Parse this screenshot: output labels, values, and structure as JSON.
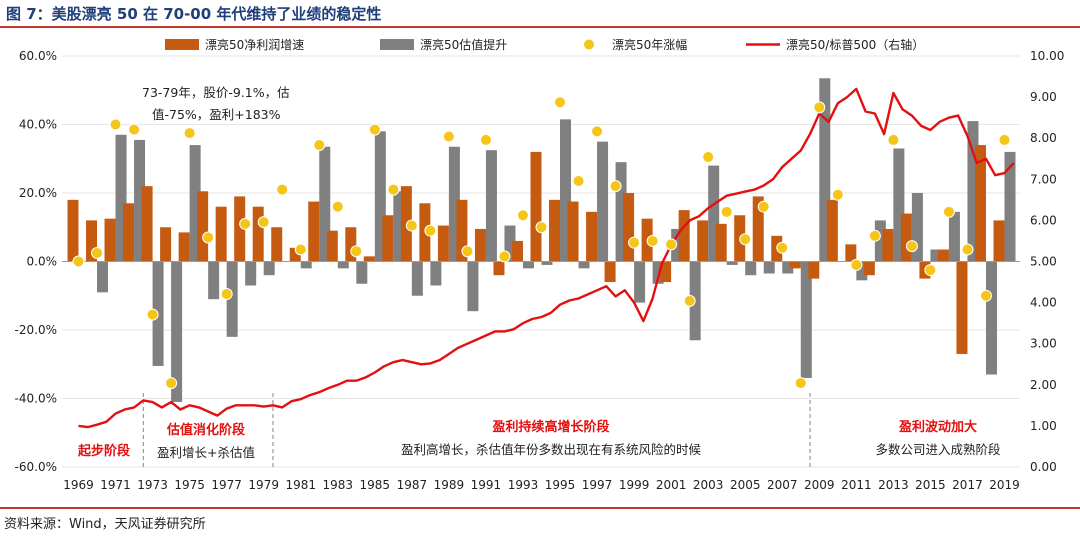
{
  "figure_title": "图 7：美股漂亮 50 在 70-00 年代维持了业绩的稳定性",
  "source": "资料来源：Wind，天风证券研究所",
  "colors": {
    "title": "#1f3f7a",
    "rule": "#c0392b",
    "profit": "#c55a11",
    "valuation": "#808080",
    "return": "#f5c518",
    "index": "#e31010",
    "annotation_red": "#e31010"
  },
  "chart_data": {
    "type": "bar",
    "title": "",
    "years": [
      1969,
      1970,
      1971,
      1972,
      1973,
      1974,
      1975,
      1976,
      1977,
      1978,
      1979,
      1980,
      1981,
      1982,
      1983,
      1984,
      1985,
      1986,
      1987,
      1988,
      1989,
      1990,
      1991,
      1992,
      1993,
      1994,
      1995,
      1996,
      1997,
      1998,
      1999,
      2000,
      2001,
      2002,
      2003,
      2004,
      2005,
      2006,
      2007,
      2008,
      2009,
      2010,
      2011,
      2012,
      2013,
      2014,
      2015,
      2016,
      2017,
      2018,
      2019
    ],
    "x_tick_labels": [
      "1969",
      "1971",
      "1973",
      "1975",
      "1977",
      "1979",
      "1981",
      "1983",
      "1985",
      "1987",
      "1989",
      "1991",
      "1993",
      "1995",
      "1997",
      "1999",
      "2001",
      "2003",
      "2005",
      "2007",
      "2009",
      "2011",
      "2013",
      "2015",
      "2017",
      "2019"
    ],
    "y_left": {
      "min": -60,
      "max": 60,
      "step": 20,
      "tick_labels": [
        "60.0%",
        "40.0%",
        "20.0%",
        "0.0%",
        "-20.0%",
        "-40.0%",
        "-60.0%"
      ]
    },
    "y_right": {
      "min": 0,
      "max": 10,
      "step": 1,
      "tick_labels": [
        "10.00",
        "9.00",
        "8.00",
        "7.00",
        "6.00",
        "5.00",
        "4.00",
        "3.00",
        "2.00",
        "1.00",
        "0.00"
      ]
    },
    "legend": {
      "position": "top",
      "items": [
        "漂亮50净利润增速",
        "漂亮50估值提升",
        "漂亮50年涨幅",
        "漂亮50/标普500（右轴）"
      ]
    },
    "series": [
      {
        "name": "漂亮50净利润增速",
        "type": "bar",
        "axis": "left",
        "values": [
          18,
          12,
          12.5,
          17,
          22,
          10,
          8.5,
          20.5,
          16,
          19,
          16,
          10,
          4,
          17.5,
          9,
          10,
          1.5,
          13.5,
          22,
          17,
          10.5,
          18,
          9.5,
          -4,
          6,
          32,
          18,
          17.5,
          14.5,
          -6,
          20,
          12.5,
          -6,
          15,
          12,
          11,
          13.5,
          19,
          7.5,
          -2,
          -5,
          18,
          5,
          -4,
          9.5,
          14,
          -5,
          3.5,
          -27,
          34,
          12
        ]
      },
      {
        "name": "漂亮50估值提升",
        "type": "bar",
        "axis": "left",
        "values": [
          0,
          -9,
          37,
          35.5,
          -30.5,
          -41,
          34,
          -11,
          -22,
          -7,
          -4,
          0,
          -2,
          33.5,
          -2,
          -6.5,
          38,
          20.5,
          -10,
          -7,
          33.5,
          -14.5,
          32.5,
          10.5,
          -2,
          -1,
          41.5,
          -2,
          35,
          29,
          -12,
          -6.5,
          9.5,
          -23,
          28,
          -1,
          -4,
          -3.5,
          -3.5,
          -34,
          53.5,
          0,
          -5.5,
          12,
          33,
          20,
          3.5,
          14.5,
          41,
          -33,
          32
        ]
      },
      {
        "name": "漂亮50年涨幅",
        "type": "scatter",
        "axis": "left",
        "values": [
          0,
          2.5,
          40,
          38.5,
          -15.5,
          -35.5,
          37.5,
          7,
          -9.5,
          11,
          11.5,
          21,
          3.5,
          34,
          16,
          3,
          38.5,
          21,
          10.5,
          9,
          36.5,
          3,
          35.5,
          1.5,
          13.5,
          10,
          46.5,
          23.5,
          38,
          22,
          5.5,
          6,
          5,
          -11.5,
          30.5,
          14.5,
          6.5,
          16,
          4,
          -35.5,
          45,
          19.5,
          -1,
          7.5,
          35.5,
          4.5,
          -2.5,
          14.5,
          3.5,
          -10,
          35.5
        ]
      },
      {
        "name": "漂亮50/标普500（右轴）",
        "type": "line",
        "axis": "right",
        "points": [
          [
            1969.0,
            1.0
          ],
          [
            1969.5,
            0.97
          ],
          [
            1970.0,
            1.03
          ],
          [
            1970.5,
            1.1
          ],
          [
            1971.0,
            1.3
          ],
          [
            1971.5,
            1.4
          ],
          [
            1972.0,
            1.45
          ],
          [
            1972.5,
            1.62
          ],
          [
            1973.0,
            1.58
          ],
          [
            1973.5,
            1.45
          ],
          [
            1974.0,
            1.58
          ],
          [
            1974.5,
            1.4
          ],
          [
            1975.0,
            1.5
          ],
          [
            1975.5,
            1.45
          ],
          [
            1976.0,
            1.35
          ],
          [
            1976.5,
            1.25
          ],
          [
            1977.0,
            1.42
          ],
          [
            1977.5,
            1.5
          ],
          [
            1978.0,
            1.5
          ],
          [
            1978.5,
            1.5
          ],
          [
            1979.0,
            1.47
          ],
          [
            1979.5,
            1.5
          ],
          [
            1980.0,
            1.45
          ],
          [
            1980.5,
            1.6
          ],
          [
            1981.0,
            1.65
          ],
          [
            1981.5,
            1.75
          ],
          [
            1982.0,
            1.82
          ],
          [
            1982.5,
            1.92
          ],
          [
            1983.0,
            2.0
          ],
          [
            1983.5,
            2.1
          ],
          [
            1984.0,
            2.1
          ],
          [
            1984.5,
            2.18
          ],
          [
            1985.0,
            2.3
          ],
          [
            1985.5,
            2.45
          ],
          [
            1986.0,
            2.55
          ],
          [
            1986.5,
            2.6
          ],
          [
            1987.0,
            2.55
          ],
          [
            1987.5,
            2.5
          ],
          [
            1988.0,
            2.52
          ],
          [
            1988.5,
            2.6
          ],
          [
            1989.0,
            2.75
          ],
          [
            1989.5,
            2.9
          ],
          [
            1990.0,
            3.0
          ],
          [
            1990.5,
            3.1
          ],
          [
            1991.0,
            3.2
          ],
          [
            1991.5,
            3.3
          ],
          [
            1992.0,
            3.3
          ],
          [
            1992.5,
            3.35
          ],
          [
            1993.0,
            3.5
          ],
          [
            1993.5,
            3.6
          ],
          [
            1994.0,
            3.65
          ],
          [
            1994.5,
            3.75
          ],
          [
            1995.0,
            3.95
          ],
          [
            1995.5,
            4.05
          ],
          [
            1996.0,
            4.1
          ],
          [
            1996.5,
            4.2
          ],
          [
            1997.0,
            4.3
          ],
          [
            1997.5,
            4.4
          ],
          [
            1998.0,
            4.15
          ],
          [
            1998.5,
            4.3
          ],
          [
            1999.0,
            4.0
          ],
          [
            1999.5,
            3.55
          ],
          [
            2000.0,
            4.1
          ],
          [
            2000.5,
            4.95
          ],
          [
            2001.0,
            5.4
          ],
          [
            2001.5,
            5.75
          ],
          [
            2002.0,
            6.0
          ],
          [
            2002.5,
            6.1
          ],
          [
            2003.0,
            6.3
          ],
          [
            2003.5,
            6.45
          ],
          [
            2004.0,
            6.6
          ],
          [
            2004.5,
            6.65
          ],
          [
            2005.0,
            6.7
          ],
          [
            2005.5,
            6.75
          ],
          [
            2006.0,
            6.85
          ],
          [
            2006.5,
            7.0
          ],
          [
            2007.0,
            7.3
          ],
          [
            2007.5,
            7.5
          ],
          [
            2008.0,
            7.7
          ],
          [
            2008.5,
            8.1
          ],
          [
            2009.0,
            8.6
          ],
          [
            2009.5,
            8.4
          ],
          [
            2010.0,
            8.85
          ],
          [
            2010.5,
            9.0
          ],
          [
            2011.0,
            9.2
          ],
          [
            2011.5,
            8.65
          ],
          [
            2012.0,
            8.6
          ],
          [
            2012.5,
            8.1
          ],
          [
            2013.0,
            9.1
          ],
          [
            2013.5,
            8.7
          ],
          [
            2014.0,
            8.55
          ],
          [
            2014.5,
            8.3
          ],
          [
            2015.0,
            8.2
          ],
          [
            2015.5,
            8.4
          ],
          [
            2016.0,
            8.5
          ],
          [
            2016.5,
            8.55
          ],
          [
            2017.0,
            8.05
          ],
          [
            2017.5,
            7.4
          ],
          [
            2018.0,
            7.5
          ],
          [
            2018.5,
            7.1
          ],
          [
            2019.0,
            7.15
          ],
          [
            2019.5,
            7.4
          ]
        ]
      }
    ],
    "annotations": {
      "callout": "73-79年，股价-9.1%，估值-75%，盈利+183%",
      "phases": [
        {
          "title": "起步阶段",
          "subtitle": ""
        },
        {
          "title": "估值消化阶段",
          "subtitle": "盈利增长+杀估值"
        },
        {
          "title": "盈利持续高增长阶段",
          "subtitle": "盈利高增长，杀估值年份多数出现在有系统风险的时候"
        },
        {
          "title": "盈利波动加大",
          "subtitle": "多数公司进入成熟阶段"
        }
      ]
    }
  }
}
